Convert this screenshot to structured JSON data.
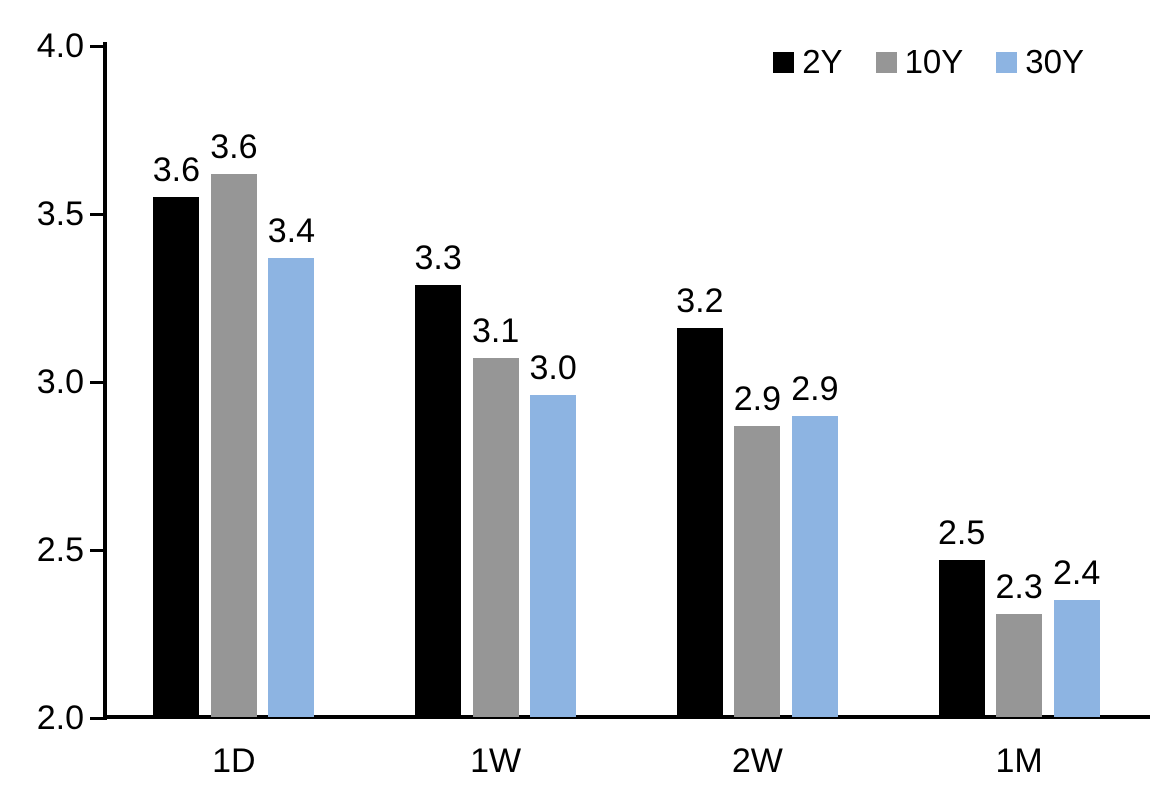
{
  "chart_data": {
    "type": "bar",
    "title": "",
    "categories": [
      "1D",
      "1W",
      "2W",
      "1M"
    ],
    "series": [
      {
        "name": "2Y",
        "color": "#000000",
        "values": [
          3.55,
          3.29,
          3.16,
          2.47
        ],
        "labels": [
          "3.6",
          "3.3",
          "3.2",
          "2.5"
        ]
      },
      {
        "name": "10Y",
        "color": "#969696",
        "values": [
          3.62,
          3.07,
          2.87,
          2.31
        ],
        "labels": [
          "3.6",
          "3.1",
          "2.9",
          "2.3"
        ]
      },
      {
        "name": "30Y",
        "color": "#8DB4E2",
        "values": [
          3.37,
          2.96,
          2.9,
          2.35
        ],
        "labels": [
          "3.4",
          "3.0",
          "2.9",
          "2.4"
        ]
      }
    ],
    "xlabel": "",
    "ylabel": "",
    "ylim": [
      2.0,
      4.0
    ],
    "yticks": [
      {
        "value": 4.0,
        "label": "4.0"
      },
      {
        "value": 3.5,
        "label": "3.5"
      },
      {
        "value": 3.0,
        "label": "3.0"
      },
      {
        "value": 2.5,
        "label": "2.5"
      },
      {
        "value": 2.0,
        "label": "2.0"
      }
    ],
    "grid": false,
    "legend": {
      "position": "top-right",
      "entries": [
        "2Y",
        "10Y",
        "30Y"
      ]
    },
    "axis_color": "#000000",
    "label_color": "#000000",
    "background_color": "#FFFFFF"
  }
}
